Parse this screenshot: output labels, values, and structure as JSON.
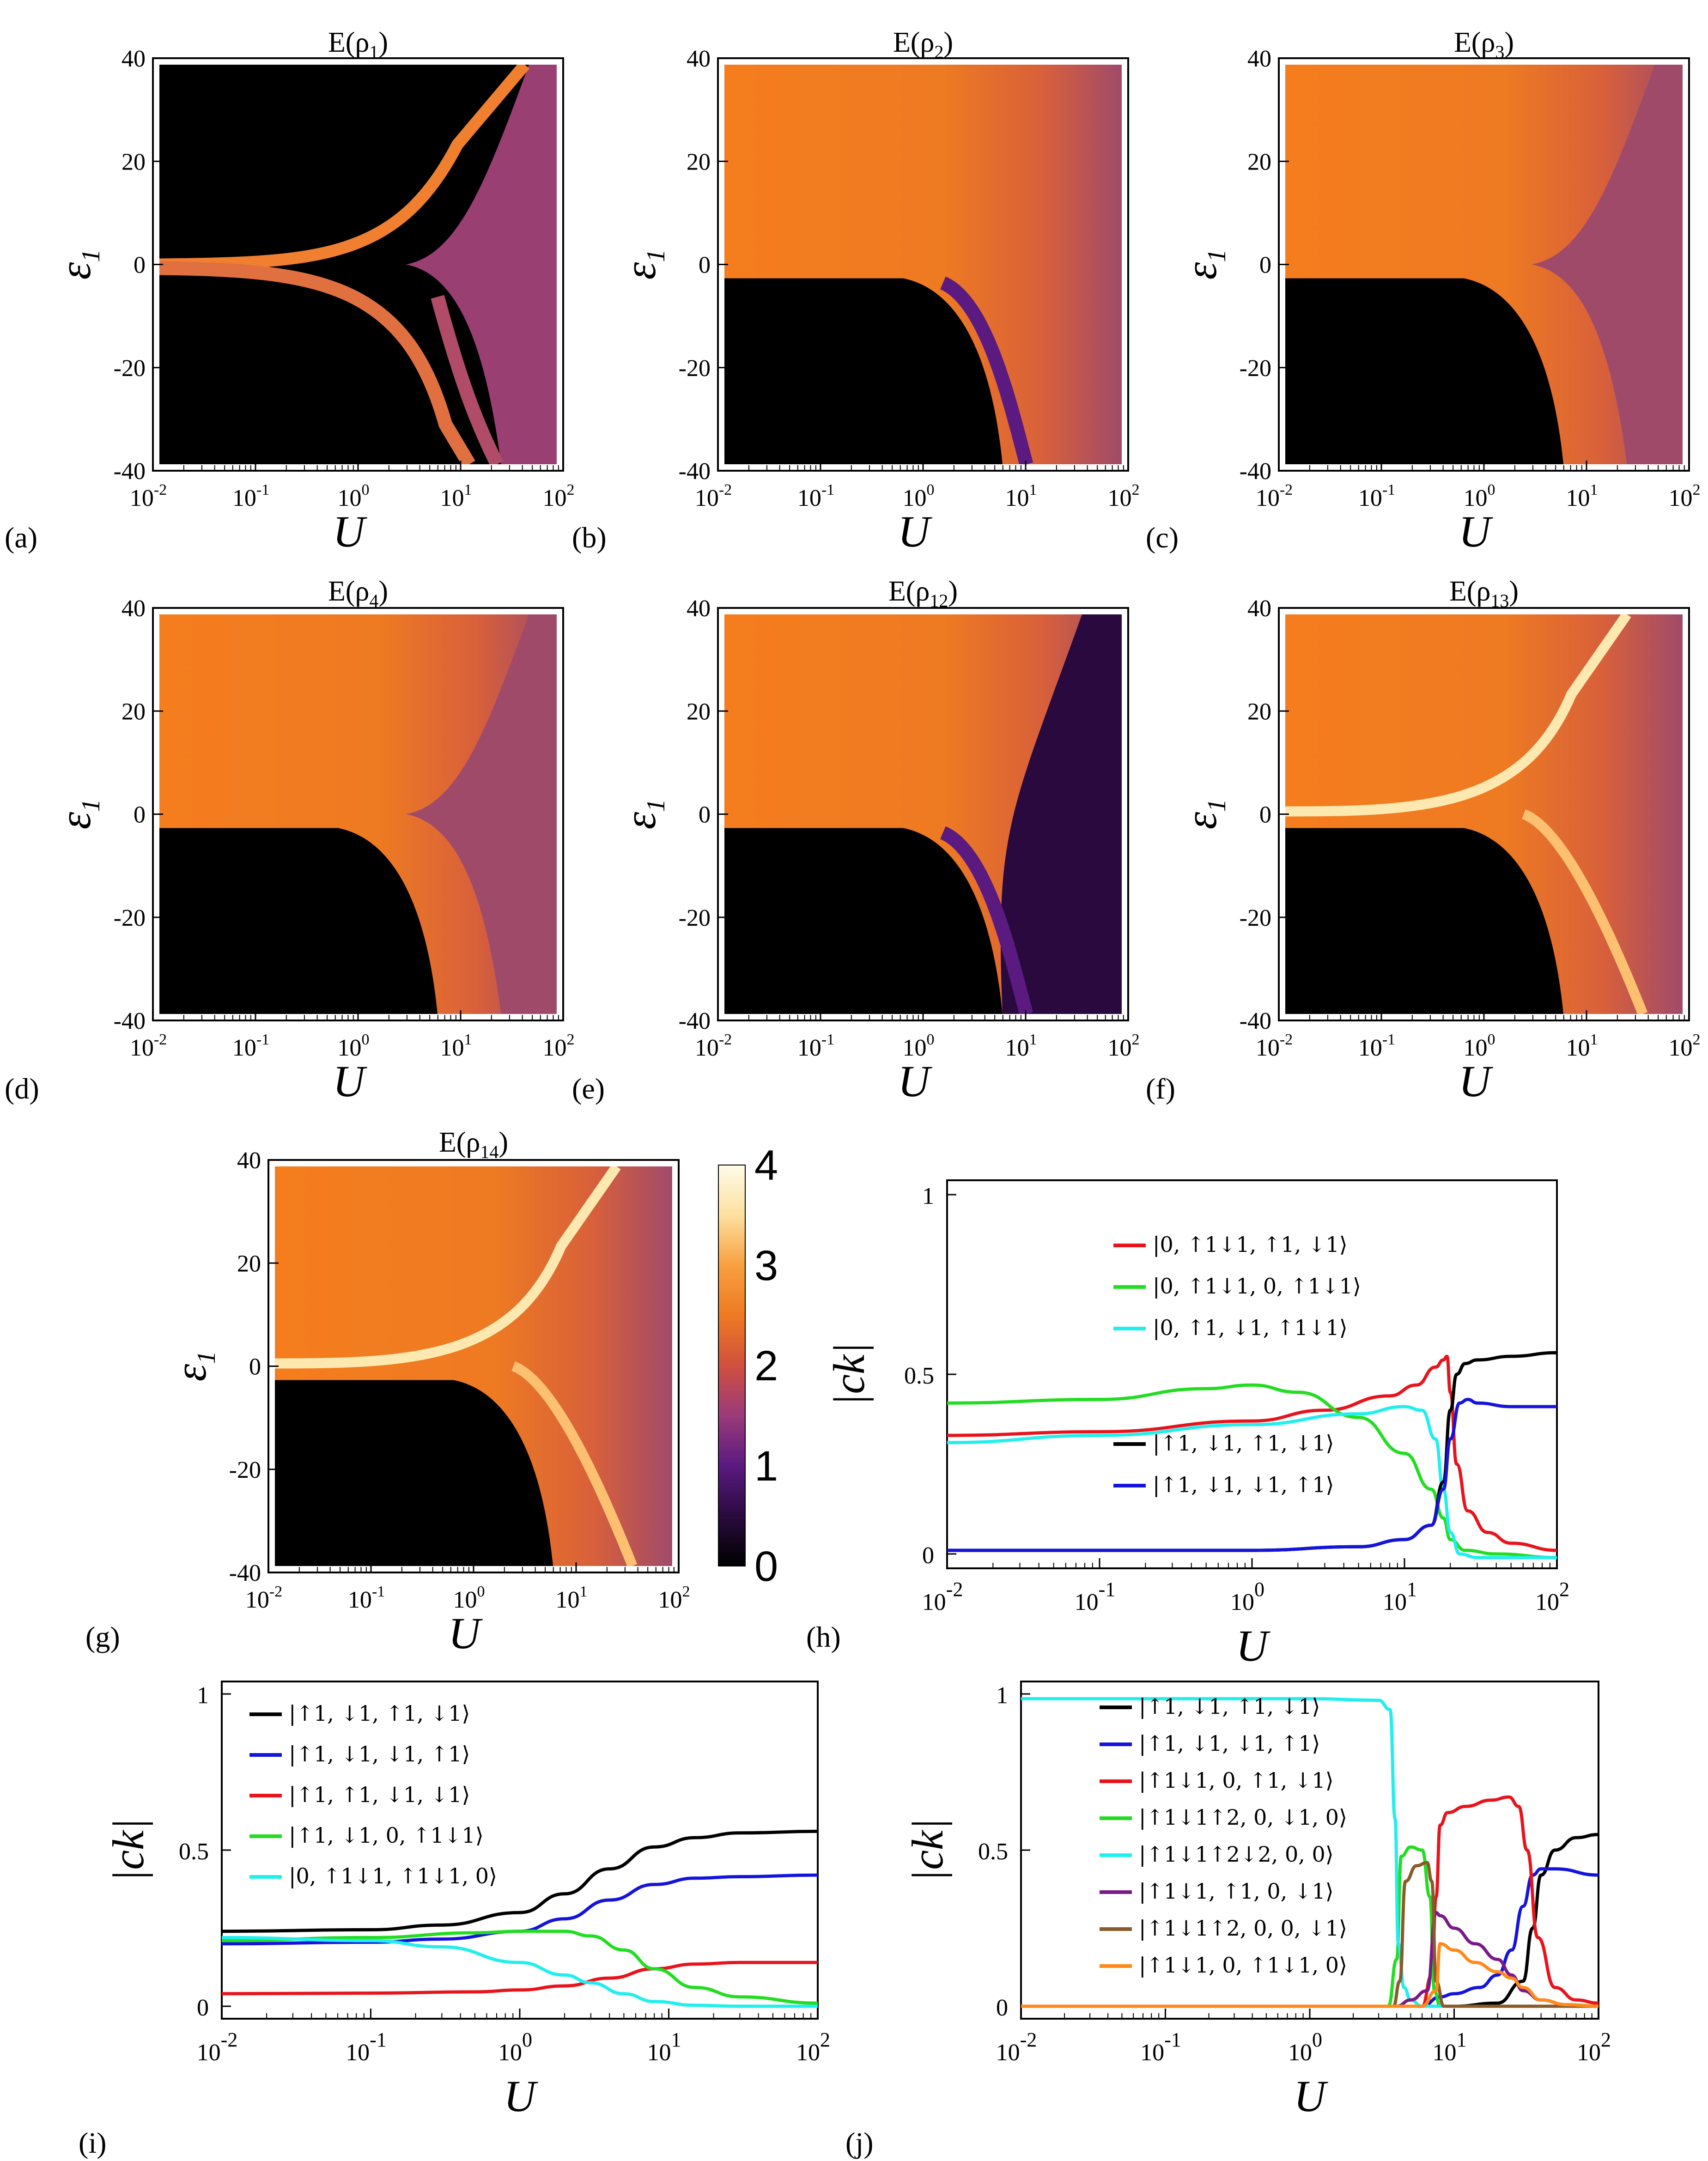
{
  "chart_data": {
    "heatmaps": [
      {
        "id": "a",
        "title": "E(ρ1)",
        "letter": "(a)",
        "xlabel": "U",
        "ylabel": "ε1",
        "x_scale": "log",
        "xlim": [
          0.01,
          100
        ],
        "ylim": [
          -40,
          40
        ],
        "xticks": [
          "-2",
          "-1",
          "0",
          "1",
          "2"
        ],
        "yticks": [
          "40",
          "20",
          "0",
          "-20",
          "-40"
        ],
        "type": "heatmap"
      },
      {
        "id": "b",
        "title": "E(ρ2)",
        "letter": "(b)",
        "xlabel": "U",
        "ylabel": "ε1",
        "x_scale": "log",
        "xlim": [
          0.01,
          100
        ],
        "ylim": [
          -40,
          40
        ],
        "xticks": [
          "-2",
          "-1",
          "0",
          "1",
          "2"
        ],
        "yticks": [
          "40",
          "20",
          "0",
          "-20",
          "-40"
        ],
        "type": "heatmap"
      },
      {
        "id": "c",
        "title": "E(ρ3)",
        "letter": "(c)",
        "xlabel": "U",
        "ylabel": "ε1",
        "x_scale": "log",
        "xlim": [
          0.01,
          100
        ],
        "ylim": [
          -40,
          40
        ],
        "xticks": [
          "-2",
          "-1",
          "0",
          "1",
          "2"
        ],
        "yticks": [
          "40",
          "20",
          "0",
          "-20",
          "-40"
        ],
        "type": "heatmap"
      },
      {
        "id": "d",
        "title": "E(ρ4)",
        "letter": "(d)",
        "xlabel": "U",
        "ylabel": "ε1",
        "x_scale": "log",
        "xlim": [
          0.01,
          100
        ],
        "ylim": [
          -40,
          40
        ],
        "xticks": [
          "-2",
          "-1",
          "0",
          "1",
          "2"
        ],
        "yticks": [
          "40",
          "20",
          "0",
          "-20",
          "-40"
        ],
        "type": "heatmap"
      },
      {
        "id": "e",
        "title": "E(ρ12)",
        "letter": "(e)",
        "xlabel": "U",
        "ylabel": "ε1",
        "x_scale": "log",
        "xlim": [
          0.01,
          100
        ],
        "ylim": [
          -40,
          40
        ],
        "xticks": [
          "-2",
          "-1",
          "0",
          "1",
          "2"
        ],
        "yticks": [
          "40",
          "20",
          "0",
          "-20",
          "-40"
        ],
        "type": "heatmap"
      },
      {
        "id": "f",
        "title": "E(ρ13)",
        "letter": "(f)",
        "xlabel": "U",
        "ylabel": "ε1",
        "x_scale": "log",
        "xlim": [
          0.01,
          100
        ],
        "ylim": [
          -40,
          40
        ],
        "xticks": [
          "-2",
          "-1",
          "0",
          "1",
          "2"
        ],
        "yticks": [
          "40",
          "20",
          "0",
          "-20",
          "-40"
        ],
        "type": "heatmap"
      },
      {
        "id": "g",
        "title": "E(ρ14)",
        "letter": "(g)",
        "xlabel": "U",
        "ylabel": "ε1",
        "x_scale": "log",
        "xlim": [
          0.01,
          100
        ],
        "ylim": [
          -40,
          40
        ],
        "xticks": [
          "-2",
          "-1",
          "0",
          "1",
          "2"
        ],
        "yticks": [
          "40",
          "20",
          "0",
          "-20",
          "-40"
        ],
        "type": "heatmap"
      }
    ],
    "colorbar": {
      "min": 0,
      "max": 4,
      "ticks": [
        "4",
        "3",
        "2",
        "1",
        "0"
      ],
      "colors": [
        "#000000",
        "#2a0a3e",
        "#5a1a80",
        "#9a3a7a",
        "#d0503e",
        "#ee7a22",
        "#f8a040",
        "#fde0a0",
        "#fffbe8"
      ]
    },
    "line_plots": [
      {
        "id": "h",
        "letter": "(h)",
        "type": "line",
        "xlabel": "U",
        "ylabel": "|ck|",
        "x_scale": "log",
        "xlim": [
          0.01,
          100
        ],
        "ylim": [
          0,
          1
        ],
        "xticks": [
          "-2",
          "-1",
          "0",
          "1",
          "2"
        ],
        "yticks": [
          "1",
          "0.5",
          "0"
        ],
        "series": [
          {
            "name": "|0, ↑1↓1, ↑1, ↓1⟩",
            "color": "#e8141c",
            "x": [
              0.01,
              0.1,
              1,
              3,
              8,
              12,
              16,
              18,
              19,
              20,
              22,
              26,
              35,
              50,
              100
            ],
            "values": [
              0.33,
              0.34,
              0.37,
              0.4,
              0.44,
              0.47,
              0.52,
              0.54,
              0.55,
              0.45,
              0.25,
              0.12,
              0.06,
              0.03,
              0.01
            ]
          },
          {
            "name": "|0, ↑1↓1, 0, ↑1↓1⟩",
            "color": "#22dd22",
            "x": [
              0.01,
              0.1,
              0.5,
              1,
              2,
              5,
              10,
              15,
              18,
              20,
              25,
              40,
              100
            ],
            "values": [
              0.42,
              0.43,
              0.46,
              0.47,
              0.45,
              0.38,
              0.28,
              0.18,
              0.1,
              0.04,
              0.01,
              0.0,
              -0.01
            ]
          },
          {
            "name": "|0, ↑1, ↓1, ↑1↓1⟩",
            "color": "#22eeee",
            "x": [
              0.01,
              0.1,
              1,
              5,
              10,
              13,
              16,
              18,
              20,
              23,
              30,
              100
            ],
            "values": [
              0.31,
              0.33,
              0.36,
              0.39,
              0.41,
              0.4,
              0.32,
              0.18,
              0.06,
              0.0,
              -0.01,
              -0.01
            ]
          },
          {
            "name": "|↑1, ↓1, ↑1, ↓1⟩",
            "color": "#000000",
            "x": [
              0.01,
              0.1,
              1,
              5,
              10,
              15,
              18,
              20,
              22,
              25,
              30,
              50,
              100
            ],
            "values": [
              0.01,
              0.01,
              0.01,
              0.02,
              0.04,
              0.08,
              0.2,
              0.4,
              0.5,
              0.53,
              0.54,
              0.55,
              0.56
            ]
          },
          {
            "name": "|↑1, ↓1, ↓1, ↑1⟩",
            "color": "#1414dd",
            "x": [
              0.01,
              0.1,
              1,
              5,
              10,
              15,
              18,
              20,
              23,
              26,
              30,
              50,
              100
            ],
            "values": [
              0.01,
              0.01,
              0.01,
              0.02,
              0.04,
              0.08,
              0.18,
              0.32,
              0.42,
              0.43,
              0.42,
              0.41,
              0.41
            ]
          }
        ]
      },
      {
        "id": "i",
        "letter": "(i)",
        "type": "line",
        "xlabel": "U",
        "ylabel": "|ck|",
        "x_scale": "log",
        "xlim": [
          0.01,
          100
        ],
        "ylim": [
          0,
          1
        ],
        "xticks": [
          "-2",
          "-1",
          "0",
          "1",
          "2"
        ],
        "yticks": [
          "1",
          "0.5",
          "0"
        ],
        "series": [
          {
            "name": "|↑1, ↓1, ↑1, ↓1⟩",
            "color": "#000000",
            "x": [
              0.01,
              0.1,
              0.3,
              1,
              2,
              4,
              8,
              15,
              30,
              100
            ],
            "values": [
              0.24,
              0.245,
              0.26,
              0.3,
              0.36,
              0.44,
              0.51,
              0.54,
              0.555,
              0.56
            ]
          },
          {
            "name": "|↑1, ↓1, ↓1, ↑1⟩",
            "color": "#1414dd",
            "x": [
              0.01,
              0.1,
              0.3,
              1,
              2,
              4,
              8,
              15,
              30,
              100
            ],
            "values": [
              0.2,
              0.205,
              0.215,
              0.24,
              0.28,
              0.34,
              0.39,
              0.41,
              0.415,
              0.42
            ]
          },
          {
            "name": "|↑1, ↑1, ↓1, ↓1⟩",
            "color": "#e8141c",
            "x": [
              0.01,
              0.1,
              0.5,
              1,
              2,
              4,
              8,
              15,
              30,
              100
            ],
            "values": [
              0.04,
              0.042,
              0.046,
              0.052,
              0.065,
              0.09,
              0.12,
              0.135,
              0.14,
              0.14
            ]
          },
          {
            "name": "|↑1, ↓1, 0, ↑1↓1⟩",
            "color": "#22dd22",
            "x": [
              0.01,
              0.1,
              0.5,
              1,
              2,
              3,
              5,
              8,
              15,
              30,
              100
            ],
            "values": [
              0.21,
              0.22,
              0.235,
              0.24,
              0.24,
              0.225,
              0.18,
              0.12,
              0.06,
              0.03,
              0.01
            ]
          },
          {
            "name": "|0, ↑1↓1, ↑1↓1, 0⟩",
            "color": "#22eeee",
            "x": [
              0.01,
              0.1,
              0.3,
              1,
              2,
              3,
              5,
              8,
              15,
              30,
              100
            ],
            "values": [
              0.22,
              0.21,
              0.19,
              0.14,
              0.1,
              0.075,
              0.04,
              0.015,
              0.003,
              0.0,
              0.0
            ]
          }
        ]
      },
      {
        "id": "j",
        "letter": "(j)",
        "type": "line",
        "xlabel": "U",
        "ylabel": "|ck|",
        "x_scale": "log",
        "xlim": [
          0.01,
          100
        ],
        "ylim": [
          0,
          1
        ],
        "xticks": [
          "-2",
          "-1",
          "0",
          "1",
          "2"
        ],
        "yticks": [
          "1",
          "0.5",
          "0"
        ],
        "series": [
          {
            "name": "|↑1, ↓1, ↑1, ↓1⟩",
            "color": "#000000",
            "x": [
              0.01,
              1,
              10,
              20,
              30,
              35,
              40,
              50,
              70,
              100
            ],
            "values": [
              0.0,
              0.0,
              0.0,
              0.01,
              0.08,
              0.25,
              0.42,
              0.5,
              0.54,
              0.55
            ]
          },
          {
            "name": "|↑1, ↓1, ↓1, ↑1⟩",
            "color": "#1414dd",
            "x": [
              0.01,
              1,
              6,
              8,
              10,
              15,
              20,
              25,
              30,
              35,
              40,
              50,
              100
            ],
            "values": [
              0.0,
              0.0,
              0.0,
              0.03,
              0.04,
              0.06,
              0.1,
              0.18,
              0.32,
              0.42,
              0.44,
              0.44,
              0.42
            ]
          },
          {
            "name": "|↑1↓1, 0, ↑1, ↓1⟩",
            "color": "#e8141c",
            "x": [
              0.01,
              1,
              6,
              7,
              7.5,
              8,
              9,
              12,
              18,
              24,
              28,
              32,
              38,
              50,
              70,
              100
            ],
            "values": [
              0.0,
              0.0,
              0.0,
              0.1,
              0.35,
              0.58,
              0.62,
              0.64,
              0.66,
              0.67,
              0.64,
              0.5,
              0.22,
              0.06,
              0.02,
              0.01
            ]
          },
          {
            "name": "|↑1↓1↑2, 0, ↓1, 0⟩",
            "color": "#22dd22",
            "x": [
              0.01,
              1,
              3.5,
              4,
              4.3,
              5,
              6,
              6.8,
              7.3,
              8,
              100
            ],
            "values": [
              0.0,
              0.0,
              0.0,
              0.15,
              0.48,
              0.51,
              0.5,
              0.35,
              0.05,
              0.0,
              0.0
            ]
          },
          {
            "name": "|↑1↓1↑2↓2, 0, 0⟩",
            "color": "#22eeee",
            "x": [
              0.01,
              0.1,
              1,
              3,
              3.6,
              3.9,
              4.1,
              4.5,
              5,
              6,
              100
            ],
            "values": [
              0.985,
              0.985,
              0.985,
              0.98,
              0.95,
              0.6,
              0.2,
              0.06,
              0.02,
              0.0,
              0.0
            ]
          },
          {
            "name": "|↑1↓1, ↑1, 0, ↓1⟩",
            "color": "#7a1a8a",
            "x": [
              0.01,
              1,
              4,
              5,
              6.5,
              7.5,
              8,
              10,
              14,
              20,
              25,
              30,
              40,
              60,
              100
            ],
            "values": [
              0.0,
              0.0,
              0.0,
              0.02,
              0.05,
              0.3,
              0.29,
              0.25,
              0.2,
              0.15,
              0.1,
              0.05,
              0.02,
              0.005,
              0.0
            ]
          },
          {
            "name": "|↑1↓1↑2, 0, 0, ↓1⟩",
            "color": "#8a5a2a",
            "x": [
              0.01,
              1,
              3.8,
              4.2,
              4.6,
              5.5,
              6.5,
              7,
              7.5,
              8.5,
              100
            ],
            "values": [
              0.0,
              0.0,
              0.0,
              0.08,
              0.4,
              0.45,
              0.46,
              0.4,
              0.08,
              0.0,
              0.0
            ]
          },
          {
            "name": "|↑1↓1, 0, ↑1↓1, 0⟩",
            "color": "#ff8a1a",
            "x": [
              0.01,
              1,
              6,
              7.5,
              8,
              10,
              14,
              20,
              25,
              30,
              40,
              60,
              100
            ],
            "values": [
              0.0,
              0.0,
              0.0,
              0.05,
              0.2,
              0.18,
              0.14,
              0.11,
              0.09,
              0.06,
              0.02,
              0.005,
              0.0
            ]
          }
        ]
      }
    ]
  }
}
